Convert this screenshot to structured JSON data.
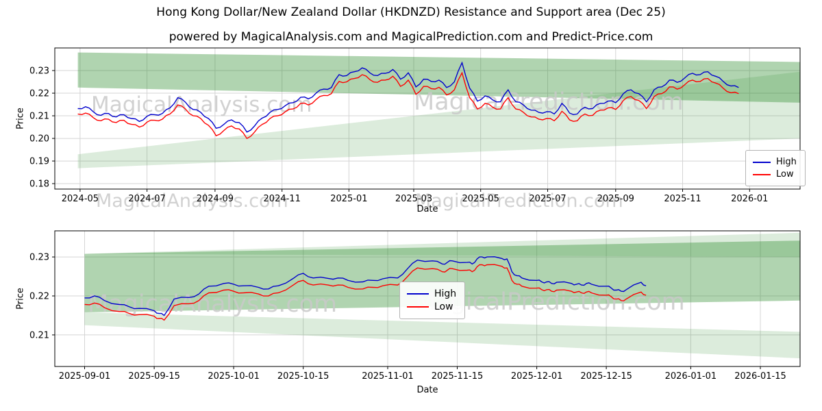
{
  "title": "Hong Kong Dollar/New Zealand Dollar (HKDNZD) Resistance and Support area (Dec 25)",
  "subtitle": "powered by MagicalAnalysis.com and MagicalPrediction.com and Predict-Price.com",
  "watermarks": {
    "analysis": "MagicalAnalysis.com",
    "prediction": "MagicalPrediction.com"
  },
  "colors": {
    "high": "#0000cd",
    "low": "#ff0000",
    "band": "#2f8f2f",
    "grid": "#d4d4d4",
    "watermark": "#c9c9c9"
  },
  "chart_data": [
    {
      "type": "line",
      "xlabel": "Date",
      "ylabel": "Price",
      "grid": true,
      "legend": {
        "position": "center-right",
        "items": [
          {
            "label": "High",
            "color": "#0000cd"
          },
          {
            "label": "Low",
            "color": "#ff0000"
          }
        ]
      },
      "x_domain": [
        "2024-04-08",
        "2026-02-16"
      ],
      "ylim": [
        0.1776,
        0.24
      ],
      "x_ticks": [
        {
          "date": "2024-05-01",
          "label": "2024-05"
        },
        {
          "date": "2024-07-01",
          "label": "2024-07"
        },
        {
          "date": "2024-09-01",
          "label": "2024-09"
        },
        {
          "date": "2024-11-01",
          "label": "2024-11"
        },
        {
          "date": "2025-01-01",
          "label": "2025-01"
        },
        {
          "date": "2025-03-01",
          "label": "2025-03"
        },
        {
          "date": "2025-05-01",
          "label": "2025-05"
        },
        {
          "date": "2025-07-01",
          "label": "2025-07"
        },
        {
          "date": "2025-09-01",
          "label": "2025-09"
        },
        {
          "date": "2025-11-01",
          "label": "2025-11"
        },
        {
          "date": "2026-01-01",
          "label": "2026-01"
        }
      ],
      "y_ticks": [
        {
          "value": 0.18,
          "label": "0.18"
        },
        {
          "value": 0.19,
          "label": "0.19"
        },
        {
          "value": 0.2,
          "label": "0.20"
        },
        {
          "value": 0.21,
          "label": "0.21"
        },
        {
          "value": 0.22,
          "label": "0.22"
        },
        {
          "value": 0.23,
          "label": "0.23"
        }
      ],
      "band_color": "#2f8f2f",
      "bands": [
        {
          "alpha": 0.38,
          "points": [
            [
              "2024-04-29",
              0.238
            ],
            [
              "2026-02-16",
              0.2338
            ],
            [
              "2026-02-16",
              0.2158
            ],
            [
              "2024-04-29",
              0.2225
            ]
          ]
        },
        {
          "alpha": 0.17,
          "points": [
            [
              "2024-04-29",
              0.193
            ],
            [
              "2026-02-16",
              0.2295
            ],
            [
              "2026-02-16",
              0.2
            ],
            [
              "2024-04-29",
              0.1868
            ]
          ]
        }
      ],
      "dates": [
        "2024-04-29",
        "2024-05-06",
        "2024-05-13",
        "2024-05-20",
        "2024-05-27",
        "2024-06-03",
        "2024-06-10",
        "2024-06-17",
        "2024-06-24",
        "2024-07-01",
        "2024-07-08",
        "2024-07-15",
        "2024-07-22",
        "2024-07-29",
        "2024-08-05",
        "2024-08-12",
        "2024-08-19",
        "2024-08-26",
        "2024-09-02",
        "2024-09-09",
        "2024-09-16",
        "2024-09-23",
        "2024-09-30",
        "2024-10-07",
        "2024-10-14",
        "2024-10-21",
        "2024-10-28",
        "2024-11-04",
        "2024-11-11",
        "2024-11-18",
        "2024-11-25",
        "2024-12-02",
        "2024-12-09",
        "2024-12-16",
        "2024-12-23",
        "2024-12-30",
        "2025-01-06",
        "2025-01-13",
        "2025-01-20",
        "2025-01-27",
        "2025-02-03",
        "2025-02-10",
        "2025-02-17",
        "2025-02-24",
        "2025-03-03",
        "2025-03-10",
        "2025-03-17",
        "2025-03-24",
        "2025-03-31",
        "2025-04-07",
        "2025-04-14",
        "2025-04-21",
        "2025-04-28",
        "2025-05-05",
        "2025-05-12",
        "2025-05-19",
        "2025-05-26",
        "2025-06-02",
        "2025-06-09",
        "2025-06-16",
        "2025-06-23",
        "2025-06-30",
        "2025-07-07",
        "2025-07-14",
        "2025-07-21",
        "2025-07-28",
        "2025-08-04",
        "2025-08-11",
        "2025-08-18",
        "2025-08-25",
        "2025-09-01",
        "2025-09-08",
        "2025-09-15",
        "2025-09-22",
        "2025-09-29",
        "2025-10-06",
        "2025-10-13",
        "2025-10-20",
        "2025-10-27",
        "2025-11-03",
        "2025-11-10",
        "2025-11-17",
        "2025-11-24",
        "2025-12-01",
        "2025-12-08",
        "2025-12-15",
        "2025-12-22"
      ],
      "series": [
        {
          "name": "High",
          "color": "#0000cd",
          "values": [
            0.2132,
            0.214,
            0.2118,
            0.2102,
            0.211,
            0.2095,
            0.2105,
            0.2088,
            0.2075,
            0.2098,
            0.2105,
            0.211,
            0.2135,
            0.218,
            0.216,
            0.2128,
            0.2115,
            0.2088,
            0.2045,
            0.2062,
            0.2082,
            0.207,
            0.2028,
            0.2055,
            0.209,
            0.2115,
            0.2128,
            0.2145,
            0.2158,
            0.2182,
            0.2175,
            0.22,
            0.2218,
            0.2225,
            0.2282,
            0.2278,
            0.2295,
            0.2312,
            0.229,
            0.2278,
            0.2288,
            0.2305,
            0.2262,
            0.229,
            0.2228,
            0.2262,
            0.2252,
            0.2258,
            0.2225,
            0.225,
            0.2335,
            0.2222,
            0.2165,
            0.2188,
            0.217,
            0.2162,
            0.2215,
            0.2162,
            0.2148,
            0.2125,
            0.2115,
            0.2118,
            0.2108,
            0.2155,
            0.2112,
            0.2108,
            0.2138,
            0.2132,
            0.2155,
            0.2165,
            0.2158,
            0.2198,
            0.2215,
            0.2198,
            0.2162,
            0.2215,
            0.2228,
            0.2258,
            0.2248,
            0.2268,
            0.2288,
            0.2282,
            0.2295,
            0.2275,
            0.2252,
            0.2232,
            0.2225
          ]
        },
        {
          "name": "Low",
          "color": "#ff0000",
          "values": [
            0.2108,
            0.2112,
            0.2092,
            0.2078,
            0.2085,
            0.207,
            0.208,
            0.2062,
            0.205,
            0.2072,
            0.208,
            0.2085,
            0.2108,
            0.2148,
            0.213,
            0.21,
            0.2088,
            0.2058,
            0.2012,
            0.2035,
            0.2055,
            0.2042,
            0.2,
            0.2028,
            0.2062,
            0.2088,
            0.21,
            0.2118,
            0.213,
            0.2155,
            0.2148,
            0.2172,
            0.219,
            0.2198,
            0.2252,
            0.225,
            0.2265,
            0.2282,
            0.226,
            0.2248,
            0.2258,
            0.2275,
            0.223,
            0.2258,
            0.2195,
            0.223,
            0.222,
            0.2226,
            0.2192,
            0.2215,
            0.229,
            0.218,
            0.213,
            0.2155,
            0.2138,
            0.213,
            0.218,
            0.213,
            0.2115,
            0.2095,
            0.2085,
            0.2088,
            0.2078,
            0.212,
            0.2082,
            0.2078,
            0.2108,
            0.2102,
            0.2125,
            0.2135,
            0.2128,
            0.2168,
            0.2185,
            0.2168,
            0.2132,
            0.2185,
            0.2198,
            0.2228,
            0.2218,
            0.2238,
            0.2258,
            0.2252,
            0.2265,
            0.2245,
            0.2222,
            0.2202,
            0.2198
          ]
        }
      ]
    },
    {
      "type": "line",
      "xlabel": "Date",
      "ylabel": "Price",
      "grid": true,
      "legend": {
        "position": "center",
        "items": [
          {
            "label": "High",
            "color": "#0000cd"
          },
          {
            "label": "Low",
            "color": "#ff0000"
          }
        ]
      },
      "x_domain": [
        "2025-08-26",
        "2026-01-23"
      ],
      "ylim": [
        0.2019,
        0.2367
      ],
      "x_ticks": [
        {
          "date": "2025-09-01",
          "label": "2025-09-01"
        },
        {
          "date": "2025-09-15",
          "label": "2025-09-15"
        },
        {
          "date": "2025-10-01",
          "label": "2025-10-01"
        },
        {
          "date": "2025-10-15",
          "label": "2025-10-15"
        },
        {
          "date": "2025-11-01",
          "label": "2025-11-01"
        },
        {
          "date": "2025-11-15",
          "label": "2025-11-15"
        },
        {
          "date": "2025-12-01",
          "label": "2025-12-01"
        },
        {
          "date": "2025-12-15",
          "label": "2025-12-15"
        },
        {
          "date": "2026-01-01",
          "label": "2026-01-01"
        },
        {
          "date": "2026-01-15",
          "label": "2026-01-15"
        }
      ],
      "y_ticks": [
        {
          "value": 0.21,
          "label": "0.21"
        },
        {
          "value": 0.22,
          "label": "0.22"
        },
        {
          "value": 0.23,
          "label": "0.23"
        }
      ],
      "band_color": "#2f8f2f",
      "bands": [
        {
          "alpha": 0.38,
          "points": [
            [
              "2025-09-01",
              0.2308
            ],
            [
              "2026-01-23",
              0.2342
            ],
            [
              "2026-01-23",
              0.2188
            ],
            [
              "2025-09-01",
              0.2158
            ]
          ]
        },
        {
          "alpha": 0.17,
          "points": [
            [
              "2025-09-01",
              0.2308
            ],
            [
              "2026-01-23",
              0.2362
            ],
            [
              "2026-01-23",
              0.23
            ]
          ]
        },
        {
          "alpha": 0.17,
          "points": [
            [
              "2025-09-01",
              0.2158
            ],
            [
              "2026-01-23",
              0.2108
            ],
            [
              "2026-01-23",
              0.204
            ],
            [
              "2025-09-01",
              0.2125
            ]
          ]
        }
      ],
      "dates": [
        "2025-09-01",
        "2025-09-03",
        "2025-09-05",
        "2025-09-08",
        "2025-09-10",
        "2025-09-12",
        "2025-09-15",
        "2025-09-16",
        "2025-09-17",
        "2025-09-19",
        "2025-09-22",
        "2025-09-24",
        "2025-09-26",
        "2025-09-29",
        "2025-10-01",
        "2025-10-03",
        "2025-10-06",
        "2025-10-08",
        "2025-10-10",
        "2025-10-13",
        "2025-10-15",
        "2025-10-17",
        "2025-10-20",
        "2025-10-22",
        "2025-10-24",
        "2025-10-27",
        "2025-10-29",
        "2025-10-31",
        "2025-11-03",
        "2025-11-05",
        "2025-11-07",
        "2025-11-10",
        "2025-11-12",
        "2025-11-13",
        "2025-11-14",
        "2025-11-17",
        "2025-11-18",
        "2025-11-19",
        "2025-11-20",
        "2025-11-21",
        "2025-11-24",
        "2025-11-25",
        "2025-11-26",
        "2025-11-27",
        "2025-11-28",
        "2025-12-01",
        "2025-12-02",
        "2025-12-03",
        "2025-12-04",
        "2025-12-05",
        "2025-12-08",
        "2025-12-09",
        "2025-12-10",
        "2025-12-11",
        "2025-12-12",
        "2025-12-15",
        "2025-12-16",
        "2025-12-17",
        "2025-12-18",
        "2025-12-19",
        "2025-12-22",
        "2025-12-23"
      ],
      "series": [
        {
          "name": "High",
          "color": "#0000cd",
          "values": [
            0.2195,
            0.22,
            0.2188,
            0.2178,
            0.2172,
            0.2168,
            0.2162,
            0.2155,
            0.215,
            0.2192,
            0.2196,
            0.2205,
            0.2225,
            0.2232,
            0.223,
            0.2226,
            0.2222,
            0.2218,
            0.2226,
            0.2245,
            0.2258,
            0.2246,
            0.2245,
            0.2246,
            0.224,
            0.2236,
            0.224,
            0.2244,
            0.2246,
            0.227,
            0.2292,
            0.229,
            0.2282,
            0.2286,
            0.229,
            0.2286,
            0.2282,
            0.2295,
            0.23,
            0.23,
            0.2296,
            0.2295,
            0.2262,
            0.2252,
            0.2246,
            0.224,
            0.2236,
            0.2236,
            0.2232,
            0.2235,
            0.2232,
            0.223,
            0.2228,
            0.2232,
            0.223,
            0.2225,
            0.222,
            0.2215,
            0.2212,
            0.2216,
            0.2235,
            0.2226
          ]
        },
        {
          "name": "Low",
          "color": "#ff0000",
          "values": [
            0.2178,
            0.2182,
            0.217,
            0.216,
            0.2155,
            0.2152,
            0.2148,
            0.2142,
            0.2138,
            0.2175,
            0.218,
            0.2188,
            0.2208,
            0.2215,
            0.2212,
            0.2208,
            0.2205,
            0.22,
            0.2208,
            0.2228,
            0.224,
            0.2228,
            0.2228,
            0.2228,
            0.2222,
            0.2218,
            0.2222,
            0.2226,
            0.2228,
            0.225,
            0.2272,
            0.227,
            0.2262,
            0.2266,
            0.227,
            0.2266,
            0.2262,
            0.2275,
            0.228,
            0.228,
            0.2276,
            0.2272,
            0.224,
            0.223,
            0.2225,
            0.222,
            0.2216,
            0.2216,
            0.2212,
            0.2215,
            0.2212,
            0.221,
            0.2208,
            0.221,
            0.2208,
            0.2202,
            0.2198,
            0.2192,
            0.2188,
            0.2192,
            0.221,
            0.2202
          ]
        }
      ]
    }
  ]
}
